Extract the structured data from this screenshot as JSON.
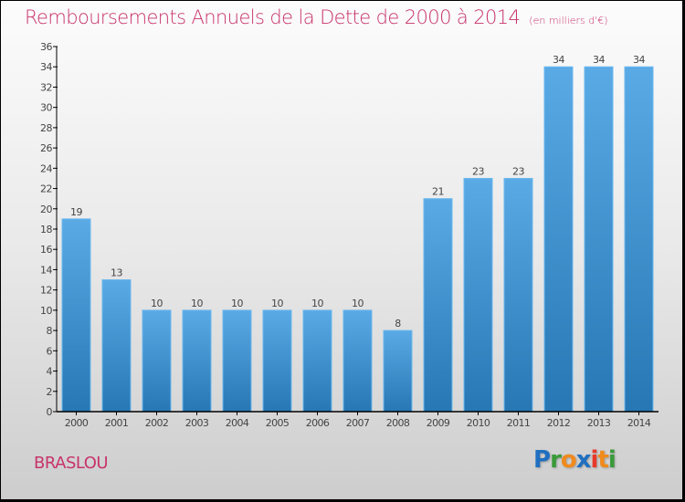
{
  "header": {
    "title": "Remboursements Annuels de la Dette de 2000 à 2014",
    "unit": "(en milliers d'€)"
  },
  "commune": "BRASLOU",
  "logo": {
    "letters": [
      {
        "char": "P",
        "color": "#1f6fc0"
      },
      {
        "char": "r",
        "color": "#3a9a3a"
      },
      {
        "char": "o",
        "color": "#f08a1c"
      },
      {
        "char": "x",
        "color": "#1f6fc0"
      },
      {
        "char": "i",
        "color": "#e83a2a"
      },
      {
        "char": "t",
        "color": "#f08a1c"
      },
      {
        "char": "i",
        "color": "#3a9a3a"
      }
    ]
  },
  "colors": {
    "title": "#c8336a",
    "bar_top": "#5aaae6",
    "bar_bottom": "#2777b4",
    "axis": "#000000",
    "tick_label": "#444444"
  },
  "chart_data": {
    "type": "bar",
    "title": "Remboursements Annuels de la Dette de 2000 à 2014",
    "subtitle": "(en milliers d'€)",
    "xlabel": "",
    "ylabel": "",
    "categories": [
      "2000",
      "2001",
      "2002",
      "2003",
      "2004",
      "2005",
      "2006",
      "2007",
      "2008",
      "2009",
      "2010",
      "2011",
      "2012",
      "2013",
      "2014"
    ],
    "values": [
      19,
      13,
      10,
      10,
      10,
      10,
      10,
      10,
      8,
      21,
      23,
      23,
      34,
      34,
      34
    ],
    "ylim": [
      0,
      36
    ],
    "yticks": [
      0,
      2,
      4,
      6,
      8,
      10,
      12,
      14,
      16,
      18,
      20,
      22,
      24,
      26,
      28,
      30,
      32,
      34,
      36
    ],
    "grid": false,
    "legend": "none",
    "data_labels": true
  }
}
